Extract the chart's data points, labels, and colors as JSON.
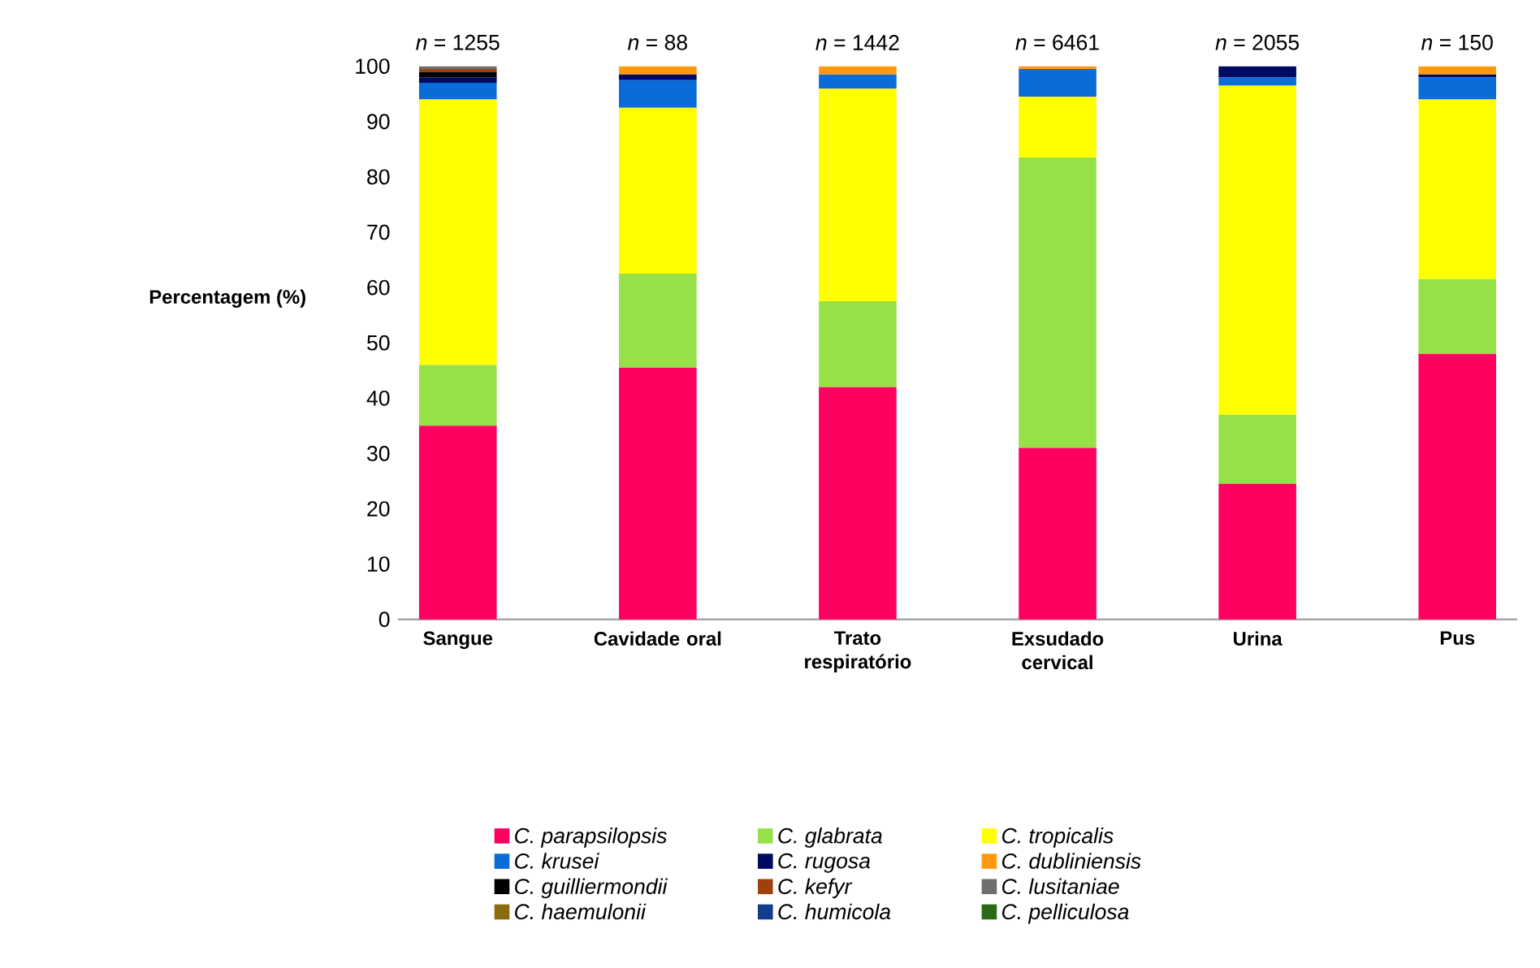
{
  "chart_data": {
    "type": "bar",
    "stacked": true,
    "ylabel": "Percentagem (%)",
    "categories": [
      "Sangue",
      "Cavidade oral",
      "Trato respiratório",
      "Exsudado cervical",
      "Urina",
      "Pus"
    ],
    "annotations": [
      "*n* = 1255",
      "*n* = 88",
      "*n* = 1442",
      "*n* = 6461",
      "*n* = 2055",
      "*n* = 150"
    ],
    "ylim": [
      0,
      100
    ],
    "yticks": [
      0,
      10,
      20,
      30,
      40,
      50,
      60,
      70,
      80,
      90,
      100
    ],
    "legend": "bottom",
    "grid": false,
    "series": [
      {
        "name": "C. parapsilopsis",
        "color": "#ff0060",
        "values": [
          35,
          45.5,
          42,
          31,
          24.5,
          48
        ]
      },
      {
        "name": "C. glabrata",
        "color": "#96e048",
        "values": [
          11,
          17,
          15.5,
          52.5,
          12.5,
          13.5
        ]
      },
      {
        "name": "C. tropicalis",
        "color": "#ffff00",
        "values": [
          48,
          30,
          38.5,
          11,
          59.5,
          32.5
        ]
      },
      {
        "name": "C. krusei",
        "color": "#0a6cd8",
        "values": [
          3,
          5,
          2.5,
          5,
          1.5,
          4
        ]
      },
      {
        "name": "C. rugosa",
        "color": "#000a60",
        "values": [
          1,
          1,
          0,
          0,
          2,
          0.5
        ]
      },
      {
        "name": "C. dubliniensis",
        "color": "#ff9a10",
        "values": [
          0,
          1.5,
          1.5,
          0.5,
          0,
          1.5
        ]
      },
      {
        "name": "C. guilliermondii",
        "color": "#000000",
        "values": [
          1,
          0,
          0,
          0,
          0,
          0
        ]
      },
      {
        "name": "C. kefyr",
        "color": "#a0400c",
        "values": [
          0.5,
          0,
          0,
          0,
          0,
          0
        ]
      },
      {
        "name": "C. lusitaniae",
        "color": "#6e6e6e",
        "values": [
          0.5,
          0,
          0,
          0,
          0,
          0
        ]
      },
      {
        "name": "C. haemulonii",
        "color": "#8c6a10",
        "values": [
          0,
          0,
          0,
          0,
          0,
          0
        ]
      },
      {
        "name": "C. humicola",
        "color": "#143c8c",
        "values": [
          0,
          0,
          0,
          0,
          0,
          0
        ]
      },
      {
        "name": "C. pelliculosa",
        "color": "#2c6a18",
        "values": [
          0,
          0,
          0,
          0,
          0,
          0
        ]
      }
    ]
  }
}
